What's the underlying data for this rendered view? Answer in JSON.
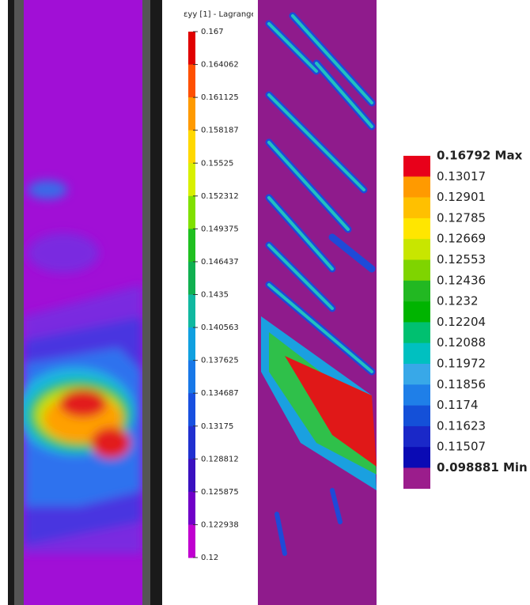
{
  "left_panel": {
    "colorbar": {
      "title": "εyy [1] - Lagrange",
      "labels": [
        "0.167",
        "0.164062",
        "0.161125",
        "0.158187",
        "0.15525",
        "0.152312",
        "0.149375",
        "0.146437",
        "0.1435",
        "0.140563",
        "0.137625",
        "0.134687",
        "0.13175",
        "0.128812",
        "0.125875",
        "0.122938",
        "0.12"
      ]
    }
  },
  "right_panel": {
    "legend": {
      "labels": [
        "0.16792 Max",
        "0.13017",
        "0.12901",
        "0.12785",
        "0.12669",
        "0.12553",
        "0.12436",
        "0.1232",
        "0.12204",
        "0.12088",
        "0.11972",
        "0.11856",
        "0.1174",
        "0.11623",
        "0.11507",
        "0.098881 Min"
      ]
    }
  }
}
